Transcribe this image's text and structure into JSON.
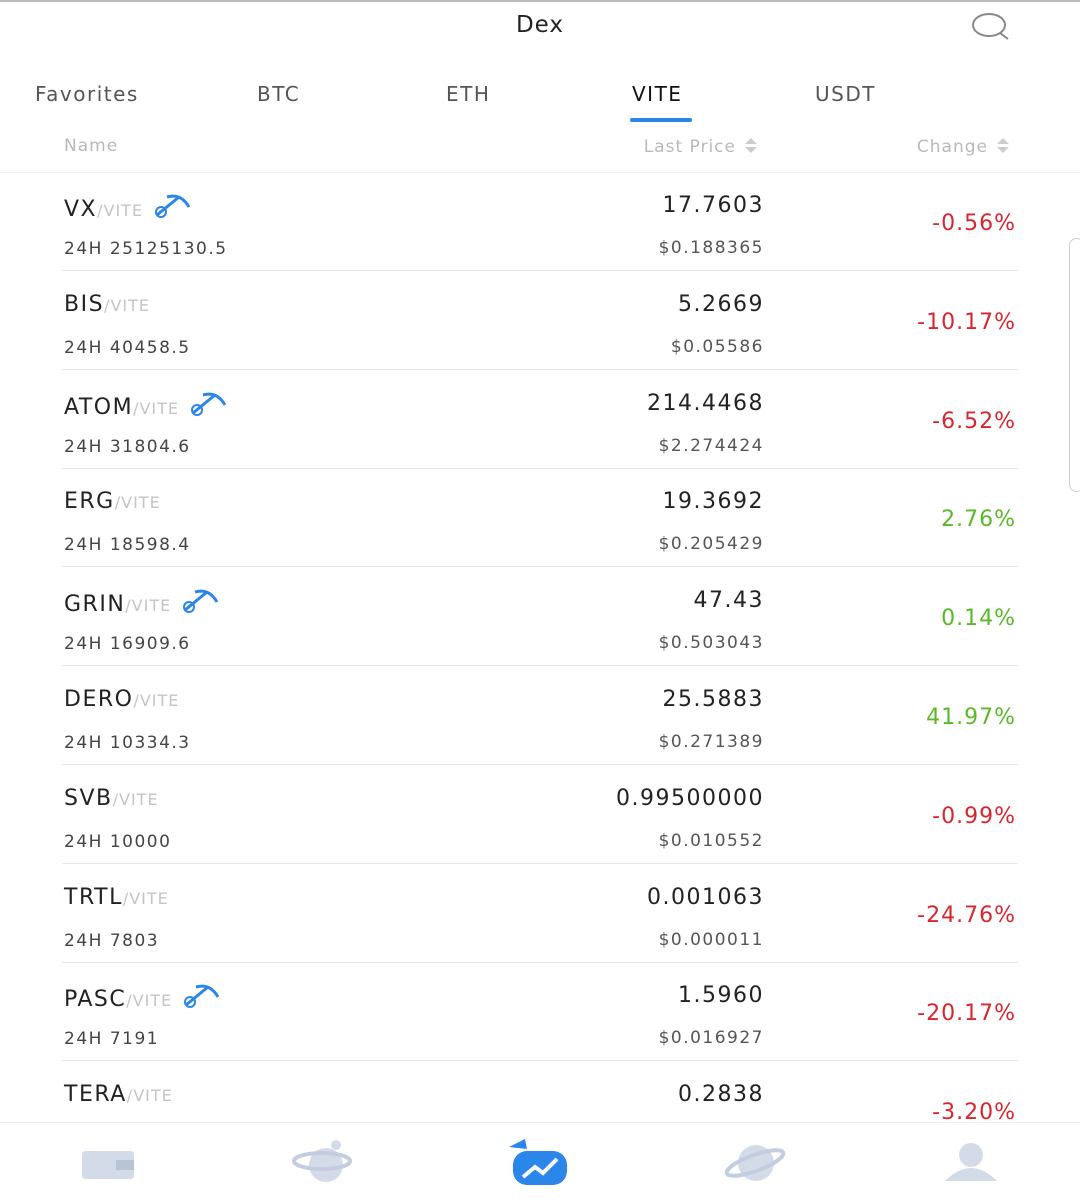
{
  "header": {
    "title": "Dex"
  },
  "tabs": [
    "Favorites",
    "BTC",
    "ETH",
    "VITE",
    "USDT"
  ],
  "columns": [
    "Name",
    "Last Price",
    "Change"
  ],
  "rows": [
    {
      "base": "VX",
      "quote": "/VITE",
      "mining": true,
      "volume": "24H 25125130.5",
      "price": "17.7603",
      "usd": "$0.188365",
      "change": "-0.56%"
    },
    {
      "base": "BIS",
      "quote": "/VITE",
      "mining": false,
      "volume": "24H 40458.5",
      "price": "5.2669",
      "usd": "$0.05586",
      "change": "-10.17%"
    },
    {
      "base": "ATOM",
      "quote": "/VITE",
      "mining": true,
      "volume": "24H 31804.6",
      "price": "214.4468",
      "usd": "$2.274424",
      "change": "-6.52%"
    },
    {
      "base": "ERG",
      "quote": "/VITE",
      "mining": false,
      "volume": "24H 18598.4",
      "price": "19.3692",
      "usd": "$0.205429",
      "change": "2.76%"
    },
    {
      "base": "GRIN",
      "quote": "/VITE",
      "mining": true,
      "volume": "24H 16909.6",
      "price": "47.43",
      "usd": "$0.503043",
      "change": "0.14%"
    },
    {
      "base": "DERO",
      "quote": "/VITE",
      "mining": false,
      "volume": "24H 10334.3",
      "price": "25.5883",
      "usd": "$0.271389",
      "change": "41.97%"
    },
    {
      "base": "SVB",
      "quote": "/VITE",
      "mining": false,
      "volume": "24H 10000",
      "price": "0.99500000",
      "usd": "$0.010552",
      "change": "-0.99%"
    },
    {
      "base": "TRTL",
      "quote": "/VITE",
      "mining": false,
      "volume": "24H 7803",
      "price": "0.001063",
      "usd": "$0.000011",
      "change": "-24.76%"
    },
    {
      "base": "PASC",
      "quote": "/VITE",
      "mining": true,
      "volume": "24H 7191",
      "price": "1.5960",
      "usd": "$0.016927",
      "change": "-20.17%"
    },
    {
      "base": "TERA",
      "quote": "/VITE",
      "mining": false,
      "price": "0.2838",
      "change": "-3.20%"
    }
  ]
}
